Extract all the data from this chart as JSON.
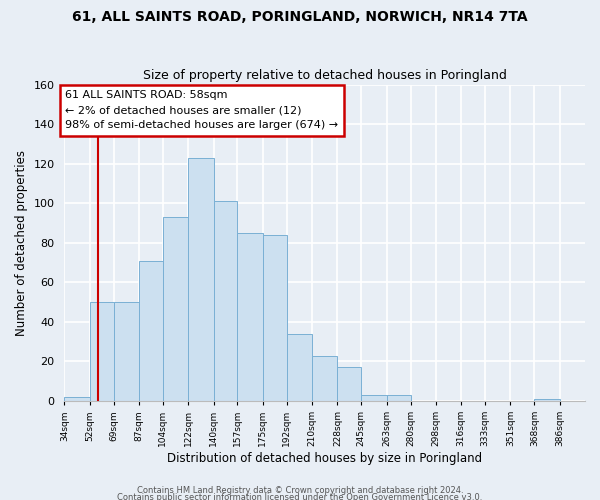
{
  "title": "61, ALL SAINTS ROAD, PORINGLAND, NORWICH, NR14 7TA",
  "subtitle": "Size of property relative to detached houses in Poringland",
  "xlabel": "Distribution of detached houses by size in Poringland",
  "ylabel": "Number of detached properties",
  "bin_labels": [
    "34sqm",
    "52sqm",
    "69sqm",
    "87sqm",
    "104sqm",
    "122sqm",
    "140sqm",
    "157sqm",
    "175sqm",
    "192sqm",
    "210sqm",
    "228sqm",
    "245sqm",
    "263sqm",
    "280sqm",
    "298sqm",
    "316sqm",
    "333sqm",
    "351sqm",
    "368sqm",
    "386sqm"
  ],
  "bin_edges": [
    34,
    52,
    69,
    87,
    104,
    122,
    140,
    157,
    175,
    192,
    210,
    228,
    245,
    263,
    280,
    298,
    316,
    333,
    351,
    368,
    386
  ],
  "bar_heights": [
    2,
    50,
    50,
    71,
    93,
    123,
    101,
    85,
    84,
    34,
    23,
    17,
    3,
    3,
    0,
    0,
    0,
    0,
    0,
    1
  ],
  "bar_color": "#cce0f0",
  "bar_edge_color": "#7ab0d4",
  "property_line_x": 58,
  "annotation_line1": "61 ALL SAINTS ROAD: 58sqm",
  "annotation_line2": "← 2% of detached houses are smaller (12)",
  "annotation_line3": "98% of semi-detached houses are larger (674) →",
  "annotation_box_color": "#ffffff",
  "annotation_box_edge": "#cc0000",
  "vline_color": "#cc0000",
  "ylim": [
    0,
    160
  ],
  "footer1": "Contains HM Land Registry data © Crown copyright and database right 2024.",
  "footer2": "Contains public sector information licensed under the Open Government Licence v3.0.",
  "bg_color": "#e8eef5",
  "grid_color": "#ffffff"
}
